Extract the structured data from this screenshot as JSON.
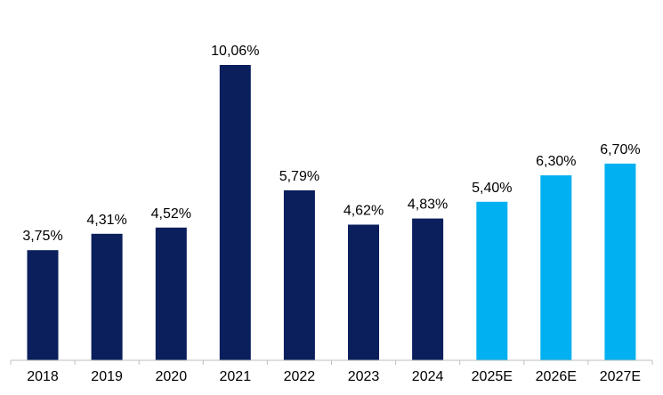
{
  "chart_data": {
    "type": "bar",
    "categories": [
      "2018",
      "2019",
      "2020",
      "2021",
      "2022",
      "2023",
      "2024",
      "2025E",
      "2026E",
      "2027E"
    ],
    "values": [
      3.75,
      4.31,
      4.52,
      10.06,
      5.79,
      4.62,
      4.83,
      5.4,
      6.3,
      6.7
    ],
    "data_labels": [
      "3,75%",
      "4,31%",
      "4,52%",
      "10,06%",
      "5,79%",
      "4,62%",
      "4,83%",
      "5,40%",
      "6,30%",
      "6,70%"
    ],
    "bar_colors": [
      "#0a1f5c",
      "#0a1f5c",
      "#0a1f5c",
      "#0a1f5c",
      "#0a1f5c",
      "#0a1f5c",
      "#0a1f5c",
      "#00b0f0",
      "#00b0f0",
      "#00b0f0"
    ],
    "actual_color": "#0a1f5c",
    "estimate_color": "#00b0f0",
    "title": "",
    "xlabel": "",
    "ylabel": "",
    "ylim": [
      0,
      10.06
    ],
    "grid": false,
    "legend": "none"
  }
}
